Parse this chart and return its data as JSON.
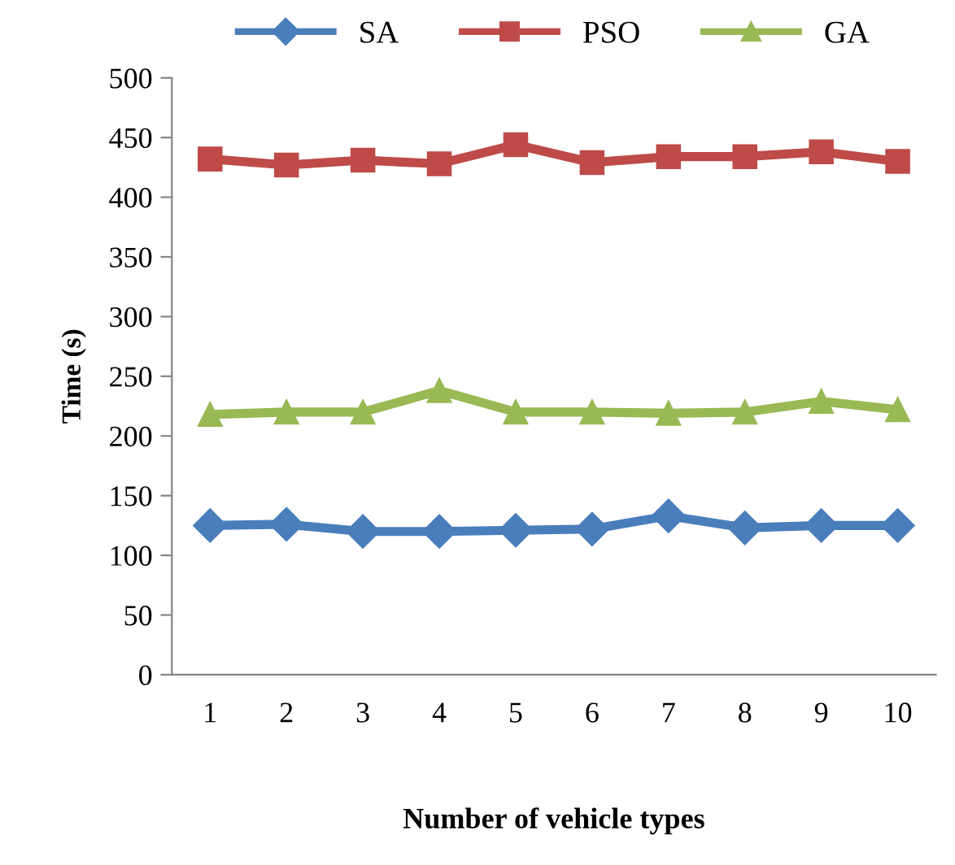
{
  "chart_data": {
    "type": "line",
    "xlabel": "Number of vehicle types",
    "ylabel": "Time (s)",
    "categories": [
      "1",
      "2",
      "3",
      "4",
      "5",
      "6",
      "7",
      "8",
      "9",
      "10"
    ],
    "series": [
      {
        "name": "SA",
        "color": "#4a7ebb",
        "marker": "diamond",
        "values": [
          125,
          126,
          120,
          120,
          121,
          122,
          133,
          123,
          125,
          125
        ]
      },
      {
        "name": "PSO",
        "color": "#be4b48",
        "marker": "square",
        "values": [
          432,
          427,
          431,
          428,
          444,
          429,
          434,
          434,
          438,
          430
        ]
      },
      {
        "name": "GA",
        "color": "#98b954",
        "marker": "triangle",
        "values": [
          218,
          220,
          220,
          238,
          220,
          220,
          219,
          220,
          229,
          222
        ]
      }
    ],
    "ylim": [
      0,
      500
    ],
    "yticks": [
      0,
      50,
      100,
      150,
      200,
      250,
      300,
      350,
      400,
      450,
      500
    ],
    "grid": false,
    "legend": "top",
    "line_style": "solid"
  }
}
